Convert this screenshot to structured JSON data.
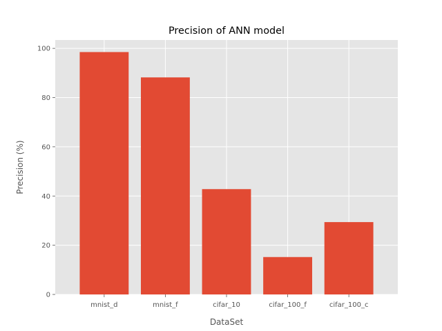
{
  "chart_data": {
    "type": "bar",
    "title": "Precision of ANN model",
    "xlabel": "DataSet",
    "ylabel": "Precision (%)",
    "categories": [
      "mnist_d",
      "mnist_f",
      "cifar_10",
      "cifar_100_f",
      "cifar_100_c"
    ],
    "values": [
      98.5,
      88.2,
      42.8,
      15.2,
      29.4
    ],
    "ylim": [
      0,
      103.4
    ],
    "yticks": [
      0,
      20,
      40,
      60,
      80,
      100
    ],
    "grid": true,
    "bar_color": "#E24A33",
    "plot_background": "#E5E5E5",
    "grid_color": "#FFFFFF"
  }
}
